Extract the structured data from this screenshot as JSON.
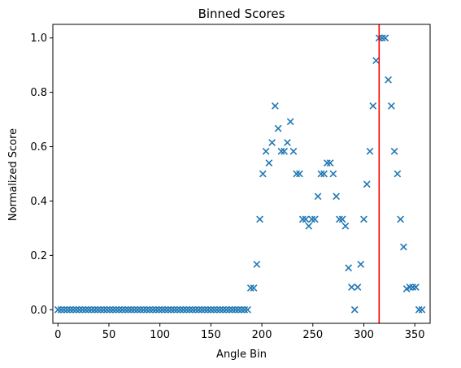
{
  "chart_data": {
    "type": "scatter",
    "title": "Binned Scores",
    "xlabel": "Angle Bin",
    "ylabel": "Normalized Score",
    "xlim": [
      -5,
      365
    ],
    "ylim": [
      -0.05,
      1.05
    ],
    "xticks": [
      0,
      50,
      100,
      150,
      200,
      250,
      300,
      350
    ],
    "yticks": [
      0.0,
      0.2,
      0.4,
      0.6,
      0.8,
      1.0
    ],
    "xtick_labels": [
      "0",
      "50",
      "100",
      "150",
      "200",
      "250",
      "300",
      "350"
    ],
    "ytick_labels": [
      "0.0",
      "0.2",
      "0.4",
      "0.6",
      "0.8",
      "1.0"
    ],
    "grid": false,
    "marker": "x",
    "marker_color": "#1f77b4",
    "vline": {
      "x": 315,
      "color": "#ff0000"
    },
    "series": [
      {
        "x": [
          0,
          3,
          6,
          9,
          12,
          15,
          18,
          21,
          24,
          27,
          30,
          33,
          36,
          39,
          42,
          45,
          48,
          51,
          54,
          57,
          60,
          63,
          66,
          69,
          72,
          75,
          78,
          81,
          84,
          87,
          90,
          93,
          96,
          99,
          102,
          105,
          108,
          111,
          114,
          117,
          120,
          123,
          126,
          129,
          132,
          135,
          138,
          141,
          144,
          147,
          150,
          153,
          156,
          159,
          162,
          165,
          168,
          171,
          174,
          177,
          180,
          183,
          186,
          189,
          192,
          195,
          198,
          201,
          204,
          207,
          210,
          213,
          216,
          219,
          222,
          225,
          228,
          231,
          234,
          237,
          240,
          243,
          246,
          249,
          252,
          255,
          258,
          261,
          264,
          267,
          270,
          273,
          276,
          279,
          282,
          285,
          288,
          291,
          294,
          297,
          300,
          303,
          306,
          309,
          312,
          315,
          318,
          321,
          324,
          327,
          330,
          333,
          336,
          339,
          342,
          345,
          348,
          351,
          354,
          357
        ],
        "y": [
          0,
          0,
          0,
          0,
          0,
          0,
          0,
          0,
          0,
          0,
          0,
          0,
          0,
          0,
          0,
          0,
          0,
          0,
          0,
          0,
          0,
          0,
          0,
          0,
          0,
          0,
          0,
          0,
          0,
          0,
          0,
          0,
          0,
          0,
          0,
          0,
          0,
          0,
          0,
          0,
          0,
          0,
          0,
          0,
          0,
          0,
          0,
          0,
          0,
          0,
          0,
          0,
          0,
          0,
          0,
          0,
          0,
          0,
          0,
          0,
          0,
          0,
          0,
          0.08,
          0.08,
          0.167,
          0.333,
          0.5,
          0.583,
          0.54,
          0.615,
          0.75,
          0.667,
          0.583,
          0.583,
          0.615,
          0.692,
          0.583,
          0.5,
          0.5,
          0.333,
          0.333,
          0.308,
          0.333,
          0.333,
          0.417,
          0.5,
          0.5,
          0.54,
          0.54,
          0.5,
          0.417,
          0.333,
          0.333,
          0.308,
          0.154,
          0.083,
          0,
          0.083,
          0.167,
          0.333,
          0.462,
          0.583,
          0.75,
          0.917,
          1.0,
          1.0,
          1.0,
          0.846,
          0.75,
          0.583,
          0.5,
          0.333,
          0.231,
          0.077,
          0.083,
          0.083,
          0.083,
          0,
          0
        ]
      }
    ]
  }
}
